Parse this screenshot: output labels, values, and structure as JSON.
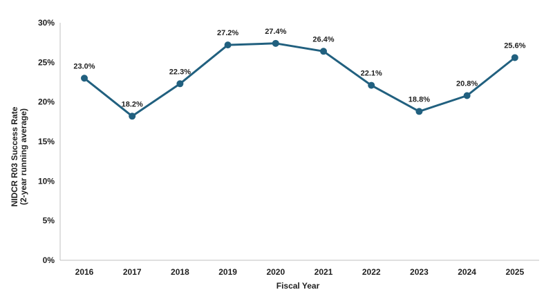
{
  "chart_data": {
    "type": "line",
    "title": "",
    "xlabel": "Fiscal Year",
    "ylabel_lines": [
      "NIDCR R03 Success Rate",
      "(2-year running average)"
    ],
    "categories": [
      "2016",
      "2017",
      "2018",
      "2019",
      "2020",
      "2021",
      "2022",
      "2023",
      "2024",
      "2025"
    ],
    "series": [
      {
        "values": [
          23.0,
          18.2,
          22.3,
          27.2,
          27.4,
          26.4,
          22.1,
          18.8,
          20.8,
          25.6
        ]
      }
    ],
    "data_labels": [
      "23.0%",
      "18.2%",
      "22.3%",
      "27.2%",
      "27.4%",
      "26.4%",
      "22.1%",
      "18.8%",
      "20.8%",
      "25.6%"
    ],
    "ylim": [
      0,
      30
    ],
    "yticks": [
      0,
      5,
      10,
      15,
      20,
      25,
      30
    ],
    "ytick_labels": [
      "0%",
      "5%",
      "10%",
      "15%",
      "20%",
      "25%",
      "30%"
    ],
    "grid": false,
    "legend": "none",
    "line_color": "#21607f",
    "marker_color": "#21607f"
  }
}
